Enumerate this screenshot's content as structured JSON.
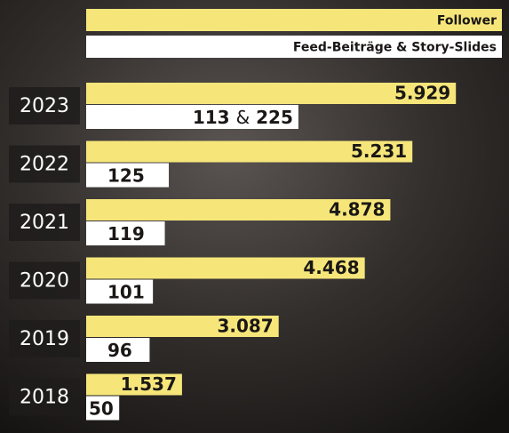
{
  "chart_data": {
    "type": "bar",
    "orientation": "horizontal",
    "categories": [
      "2023",
      "2022",
      "2021",
      "2020",
      "2019",
      "2018"
    ],
    "series": [
      {
        "name": "Follower",
        "color": "#f6e67a",
        "values": [
          5929,
          5231,
          4878,
          4468,
          3087,
          1537
        ],
        "value_labels": [
          "5.929",
          "5.231",
          "4.878",
          "4.468",
          "3.087",
          "1.537"
        ]
      },
      {
        "name": "Feed-Beiträge & Story-Slides",
        "color": "#ffffff",
        "values": [
          113,
          125,
          119,
          101,
          96,
          50
        ],
        "secondary_values": [
          225,
          null,
          null,
          null,
          null,
          null
        ],
        "joiner": "&"
      }
    ]
  }
}
